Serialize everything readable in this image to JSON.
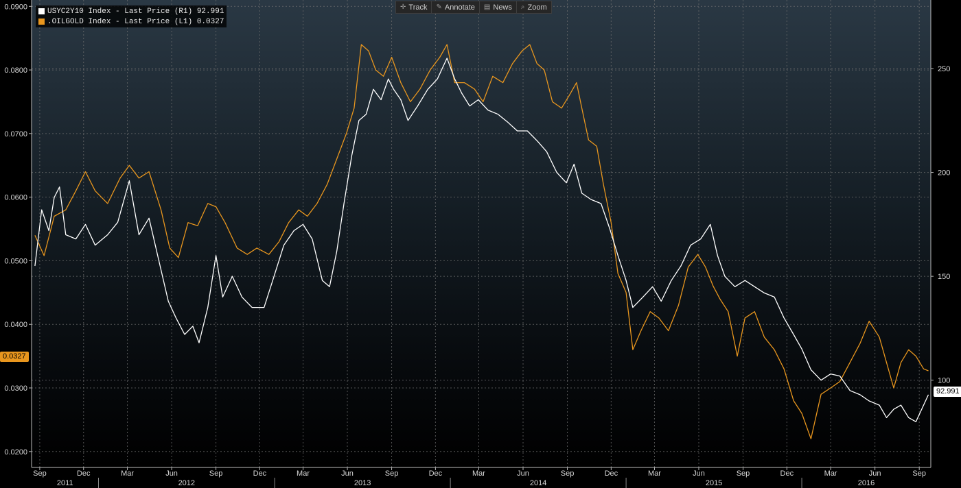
{
  "toolbar": {
    "track_label": "Track",
    "annotate_label": "Annotate",
    "news_label": "News",
    "zoom_label": "Zoom"
  },
  "legend": {
    "series1": "USYC2Y10 Index - Last Price (R1) 92.991",
    "series2": ".OILGOLD Index - Last Price (L1) 0.0327"
  },
  "tags": {
    "left_value": "0.0327",
    "right_value": "92.991"
  },
  "colors": {
    "oilgold": "#e8961e",
    "usyc": "#ffffff",
    "grid": "#6f6f6f"
  },
  "chart_data": {
    "type": "line",
    "x_axis": {
      "range": [
        "2011-08-15",
        "2016-09-25"
      ],
      "months": [
        {
          "label": "Sep",
          "date": "2011-09-01"
        },
        {
          "label": "Dec",
          "date": "2011-12-01"
        },
        {
          "label": "Mar",
          "date": "2012-03-01"
        },
        {
          "label": "Jun",
          "date": "2012-06-01"
        },
        {
          "label": "Sep",
          "date": "2012-09-01"
        },
        {
          "label": "Dec",
          "date": "2012-12-01"
        },
        {
          "label": "Mar",
          "date": "2013-03-01"
        },
        {
          "label": "Jun",
          "date": "2013-06-01"
        },
        {
          "label": "Sep",
          "date": "2013-09-01"
        },
        {
          "label": "Dec",
          "date": "2013-12-01"
        },
        {
          "label": "Mar",
          "date": "2014-03-01"
        },
        {
          "label": "Jun",
          "date": "2014-06-01"
        },
        {
          "label": "Sep",
          "date": "2014-09-01"
        },
        {
          "label": "Dec",
          "date": "2014-12-01"
        },
        {
          "label": "Mar",
          "date": "2015-03-01"
        },
        {
          "label": "Jun",
          "date": "2015-06-01"
        },
        {
          "label": "Sep",
          "date": "2015-09-01"
        },
        {
          "label": "Dec",
          "date": "2015-12-01"
        },
        {
          "label": "Mar",
          "date": "2016-03-01"
        },
        {
          "label": "Jun",
          "date": "2016-06-01"
        },
        {
          "label": "Sep",
          "date": "2016-09-01"
        }
      ],
      "years": [
        {
          "label": "2011",
          "start": "2011-08-15",
          "end": "2012-01-01"
        },
        {
          "label": "2012",
          "start": "2012-01-01",
          "end": "2013-01-01"
        },
        {
          "label": "2013",
          "start": "2013-01-01",
          "end": "2014-01-01"
        },
        {
          "label": "2014",
          "start": "2014-01-01",
          "end": "2015-01-01"
        },
        {
          "label": "2015",
          "start": "2015-01-01",
          "end": "2016-01-01"
        },
        {
          "label": "2016",
          "start": "2016-01-01",
          "end": "2016-09-25"
        }
      ]
    },
    "left_axis": {
      "range": [
        0.0175,
        0.091
      ],
      "ticks": [
        "0.0200",
        "0.0300",
        "0.0400",
        "0.0500",
        "0.0600",
        "0.0700",
        "0.0800",
        "0.0900"
      ]
    },
    "right_axis": {
      "range": [
        58,
        283
      ],
      "ticks": [
        "100",
        "150",
        "200",
        "250"
      ]
    },
    "grid": true,
    "legend_position": "top-left",
    "series": [
      {
        "name": ".OILGOLD Index - Last Price (L1)",
        "axis": "left",
        "color": "#e8961e",
        "points": [
          [
            "2011-08-22",
            0.054
          ],
          [
            "2011-09-10",
            0.0508
          ],
          [
            "2011-10-01",
            0.057
          ],
          [
            "2011-10-25",
            0.058
          ],
          [
            "2011-11-15",
            0.061
          ],
          [
            "2011-12-05",
            0.064
          ],
          [
            "2011-12-25",
            0.061
          ],
          [
            "2012-01-20",
            0.059
          ],
          [
            "2012-02-15",
            0.063
          ],
          [
            "2012-03-05",
            0.065
          ],
          [
            "2012-03-25",
            0.063
          ],
          [
            "2012-04-15",
            0.064
          ],
          [
            "2012-05-10",
            0.058
          ],
          [
            "2012-05-28",
            0.052
          ],
          [
            "2012-06-15",
            0.0505
          ],
          [
            "2012-07-05",
            0.056
          ],
          [
            "2012-07-25",
            0.0555
          ],
          [
            "2012-08-15",
            0.059
          ],
          [
            "2012-09-01",
            0.0585
          ],
          [
            "2012-09-20",
            0.056
          ],
          [
            "2012-10-15",
            0.052
          ],
          [
            "2012-11-05",
            0.051
          ],
          [
            "2012-11-25",
            0.052
          ],
          [
            "2012-12-20",
            0.051
          ],
          [
            "2013-01-10",
            0.053
          ],
          [
            "2013-01-30",
            0.056
          ],
          [
            "2013-02-20",
            0.058
          ],
          [
            "2013-03-10",
            0.057
          ],
          [
            "2013-03-30",
            0.059
          ],
          [
            "2013-04-20",
            0.062
          ],
          [
            "2013-05-10",
            0.066
          ],
          [
            "2013-05-30",
            0.07
          ],
          [
            "2013-06-15",
            0.074
          ],
          [
            "2013-06-30",
            0.084
          ],
          [
            "2013-07-15",
            0.083
          ],
          [
            "2013-07-30",
            0.08
          ],
          [
            "2013-08-15",
            0.079
          ],
          [
            "2013-09-01",
            0.082
          ],
          [
            "2013-09-20",
            0.078
          ],
          [
            "2013-10-10",
            0.075
          ],
          [
            "2013-10-30",
            0.077
          ],
          [
            "2013-11-20",
            0.08
          ],
          [
            "2013-12-10",
            0.082
          ],
          [
            "2013-12-25",
            0.084
          ],
          [
            "2014-01-10",
            0.078
          ],
          [
            "2014-01-30",
            0.078
          ],
          [
            "2014-02-20",
            0.077
          ],
          [
            "2014-03-10",
            0.075
          ],
          [
            "2014-03-30",
            0.079
          ],
          [
            "2014-04-20",
            0.078
          ],
          [
            "2014-05-10",
            0.081
          ],
          [
            "2014-05-30",
            0.083
          ],
          [
            "2014-06-15",
            0.084
          ],
          [
            "2014-06-30",
            0.081
          ],
          [
            "2014-07-15",
            0.08
          ],
          [
            "2014-08-01",
            0.075
          ],
          [
            "2014-08-20",
            0.074
          ],
          [
            "2014-09-05",
            0.076
          ],
          [
            "2014-09-20",
            0.078
          ],
          [
            "2014-10-01",
            0.074
          ],
          [
            "2014-10-15",
            0.069
          ],
          [
            "2014-11-01",
            0.068
          ],
          [
            "2014-11-15",
            0.062
          ],
          [
            "2014-12-01",
            0.056
          ],
          [
            "2014-12-15",
            0.048
          ],
          [
            "2015-01-01",
            0.045
          ],
          [
            "2015-01-15",
            0.036
          ],
          [
            "2015-02-01",
            0.039
          ],
          [
            "2015-02-20",
            0.042
          ],
          [
            "2015-03-10",
            0.041
          ],
          [
            "2015-03-30",
            0.039
          ],
          [
            "2015-04-20",
            0.043
          ],
          [
            "2015-05-10",
            0.049
          ],
          [
            "2015-05-30",
            0.051
          ],
          [
            "2015-06-15",
            0.049
          ],
          [
            "2015-07-01",
            0.046
          ],
          [
            "2015-07-15",
            0.044
          ],
          [
            "2015-08-01",
            0.042
          ],
          [
            "2015-08-20",
            0.035
          ],
          [
            "2015-09-05",
            0.041
          ],
          [
            "2015-09-25",
            0.042
          ],
          [
            "2015-10-15",
            0.038
          ],
          [
            "2015-11-05",
            0.036
          ],
          [
            "2015-11-25",
            0.033
          ],
          [
            "2015-12-15",
            0.028
          ],
          [
            "2016-01-01",
            0.026
          ],
          [
            "2016-01-20",
            0.022
          ],
          [
            "2016-02-10",
            0.029
          ],
          [
            "2016-03-01",
            0.03
          ],
          [
            "2016-03-20",
            0.031
          ],
          [
            "2016-04-10",
            0.034
          ],
          [
            "2016-05-01",
            0.037
          ],
          [
            "2016-05-20",
            0.0405
          ],
          [
            "2016-06-10",
            0.038
          ],
          [
            "2016-06-25",
            0.034
          ],
          [
            "2016-07-10",
            0.03
          ],
          [
            "2016-07-25",
            0.034
          ],
          [
            "2016-08-10",
            0.036
          ],
          [
            "2016-08-25",
            0.035
          ],
          [
            "2016-09-10",
            0.033
          ],
          [
            "2016-09-20",
            0.0327
          ]
        ]
      },
      {
        "name": "USYC2Y10 Index - Last Price (R1)",
        "axis": "right",
        "color": "#ffffff",
        "points": [
          [
            "2011-08-22",
            155
          ],
          [
            "2011-09-05",
            182
          ],
          [
            "2011-09-20",
            172
          ],
          [
            "2011-10-01",
            188
          ],
          [
            "2011-10-12",
            193
          ],
          [
            "2011-10-25",
            170
          ],
          [
            "2011-11-15",
            168
          ],
          [
            "2011-12-05",
            175
          ],
          [
            "2011-12-25",
            165
          ],
          [
            "2012-01-20",
            170
          ],
          [
            "2012-02-10",
            176
          ],
          [
            "2012-03-05",
            196
          ],
          [
            "2012-03-25",
            170
          ],
          [
            "2012-04-15",
            178
          ],
          [
            "2012-05-05",
            158
          ],
          [
            "2012-05-25",
            138
          ],
          [
            "2012-06-10",
            130
          ],
          [
            "2012-06-28",
            122
          ],
          [
            "2012-07-15",
            126
          ],
          [
            "2012-07-28",
            118
          ],
          [
            "2012-08-15",
            135
          ],
          [
            "2012-09-01",
            160
          ],
          [
            "2012-09-15",
            140
          ],
          [
            "2012-10-05",
            150
          ],
          [
            "2012-10-25",
            140
          ],
          [
            "2012-11-15",
            135
          ],
          [
            "2012-12-10",
            135
          ],
          [
            "2012-12-28",
            148
          ],
          [
            "2013-01-20",
            165
          ],
          [
            "2013-02-10",
            172
          ],
          [
            "2013-03-01",
            175
          ],
          [
            "2013-03-20",
            168
          ],
          [
            "2013-04-10",
            148
          ],
          [
            "2013-04-25",
            145
          ],
          [
            "2013-05-10",
            162
          ],
          [
            "2013-05-25",
            185
          ],
          [
            "2013-06-10",
            208
          ],
          [
            "2013-06-25",
            225
          ],
          [
            "2013-07-10",
            228
          ],
          [
            "2013-07-25",
            240
          ],
          [
            "2013-08-10",
            235
          ],
          [
            "2013-08-25",
            245
          ],
          [
            "2013-09-05",
            240
          ],
          [
            "2013-09-20",
            235
          ],
          [
            "2013-10-05",
            225
          ],
          [
            "2013-10-25",
            232
          ],
          [
            "2013-11-15",
            240
          ],
          [
            "2013-12-05",
            245
          ],
          [
            "2013-12-25",
            255
          ],
          [
            "2014-01-10",
            245
          ],
          [
            "2014-01-25",
            238
          ],
          [
            "2014-02-10",
            232
          ],
          [
            "2014-02-28",
            235
          ],
          [
            "2014-03-20",
            230
          ],
          [
            "2014-04-10",
            228
          ],
          [
            "2014-05-01",
            224
          ],
          [
            "2014-05-20",
            220
          ],
          [
            "2014-06-10",
            220
          ],
          [
            "2014-07-01",
            215
          ],
          [
            "2014-07-20",
            210
          ],
          [
            "2014-08-10",
            200
          ],
          [
            "2014-08-30",
            195
          ],
          [
            "2014-09-15",
            204
          ],
          [
            "2014-10-01",
            190
          ],
          [
            "2014-10-20",
            187
          ],
          [
            "2014-11-10",
            185
          ],
          [
            "2014-11-28",
            173
          ],
          [
            "2014-12-15",
            160
          ],
          [
            "2015-01-01",
            148
          ],
          [
            "2015-01-15",
            135
          ],
          [
            "2015-02-05",
            140
          ],
          [
            "2015-02-25",
            145
          ],
          [
            "2015-03-15",
            138
          ],
          [
            "2015-04-05",
            148
          ],
          [
            "2015-04-25",
            155
          ],
          [
            "2015-05-15",
            165
          ],
          [
            "2015-06-05",
            168
          ],
          [
            "2015-06-25",
            175
          ],
          [
            "2015-07-10",
            160
          ],
          [
            "2015-07-25",
            150
          ],
          [
            "2015-08-15",
            145
          ],
          [
            "2015-09-05",
            148
          ],
          [
            "2015-09-25",
            145
          ],
          [
            "2015-10-15",
            142
          ],
          [
            "2015-11-05",
            140
          ],
          [
            "2015-11-25",
            130
          ],
          [
            "2015-12-15",
            122
          ],
          [
            "2016-01-01",
            115
          ],
          [
            "2016-01-20",
            105
          ],
          [
            "2016-02-10",
            100
          ],
          [
            "2016-03-01",
            103
          ],
          [
            "2016-03-20",
            102
          ],
          [
            "2016-04-10",
            95
          ],
          [
            "2016-05-01",
            93
          ],
          [
            "2016-05-20",
            90
          ],
          [
            "2016-06-10",
            88
          ],
          [
            "2016-06-25",
            82
          ],
          [
            "2016-07-10",
            86
          ],
          [
            "2016-07-25",
            88
          ],
          [
            "2016-08-10",
            82
          ],
          [
            "2016-08-25",
            80
          ],
          [
            "2016-09-10",
            88
          ],
          [
            "2016-09-20",
            92.991
          ]
        ]
      }
    ]
  }
}
